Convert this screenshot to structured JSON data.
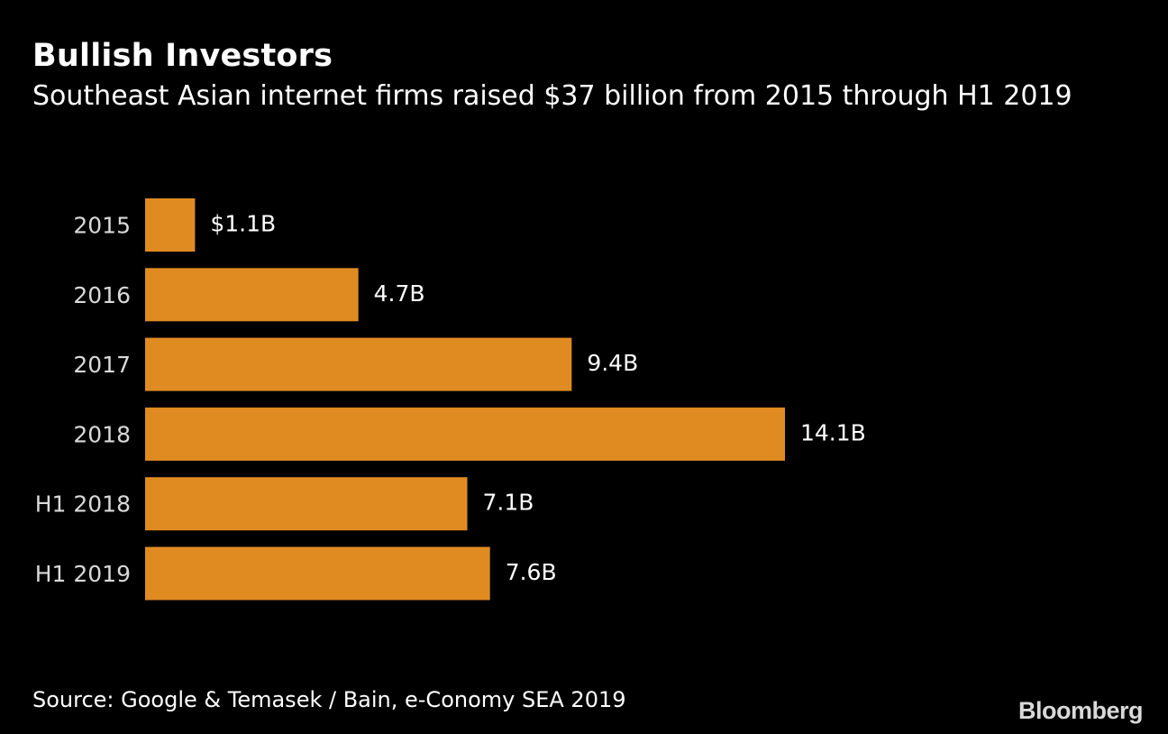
{
  "title": "Bullish Investors",
  "subtitle": "Southeast Asian internet firms raised $37 billion from 2015 through H1 2019",
  "source": "Source: Google & Temasek / Bain, e-Conomy SEA 2019",
  "brand": "Bloomberg",
  "colors": {
    "background": "#000000",
    "bar": "#e08b22",
    "text": "#ffffff",
    "category_text": "#d9d9d9"
  },
  "chart_data": {
    "type": "bar",
    "orientation": "horizontal",
    "categories": [
      "2015",
      "2016",
      "2017",
      "2018",
      "H1 2018",
      "H1 2019"
    ],
    "values": [
      1.1,
      4.7,
      9.4,
      14.1,
      7.1,
      7.6
    ],
    "value_labels": [
      "$1.1B",
      "4.7B",
      "9.4B",
      "14.1B",
      "7.1B",
      "7.6B"
    ],
    "xlim": [
      0,
      14.1
    ],
    "grid": false,
    "legend": "none"
  }
}
